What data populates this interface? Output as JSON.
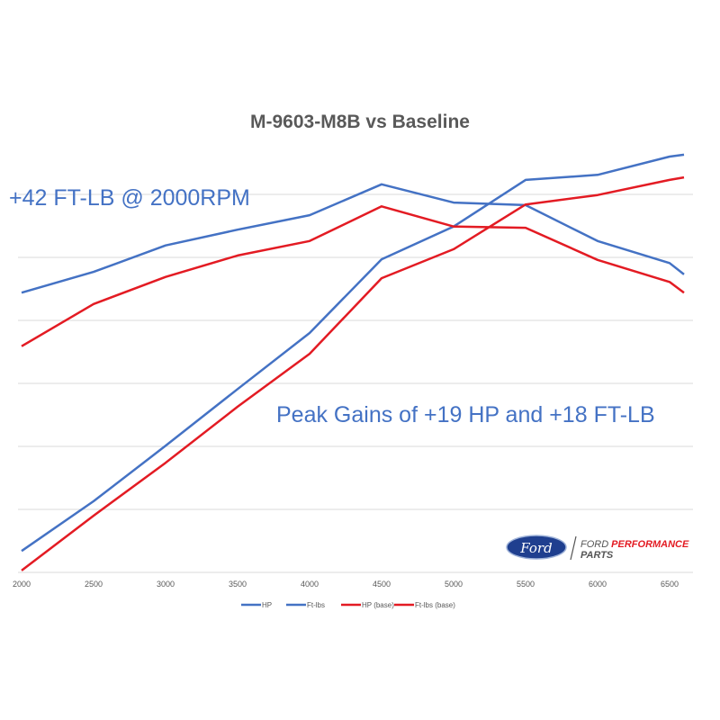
{
  "chart_data": {
    "type": "line",
    "title": "M-9603-M8B vs Baseline",
    "xlabel": "",
    "ylabel": "",
    "x": [
      2000,
      2500,
      3000,
      3500,
      4000,
      4500,
      5000,
      5500,
      6000,
      6500,
      6600
    ],
    "x_ticks": [
      "2000",
      "2500",
      "3000",
      "3500",
      "4000",
      "4500",
      "5000",
      "5500",
      "6000",
      "6500"
    ],
    "xlim": [
      2000,
      6650
    ],
    "ylim": [
      0,
      7
    ],
    "y_tick_labels_shown": false,
    "grid": "horizontal",
    "legend_position": "bottom",
    "series": [
      {
        "name": "HP",
        "color": "#4472c4",
        "values": [
          0.34,
          1.13,
          2.01,
          2.91,
          3.8,
          4.97,
          5.49,
          6.23,
          6.31,
          6.6,
          6.63
        ]
      },
      {
        "name": "Ft-lbs",
        "color": "#4472c4",
        "values": [
          4.44,
          4.77,
          5.19,
          5.44,
          5.67,
          6.16,
          5.87,
          5.83,
          5.26,
          4.91,
          4.73
        ]
      },
      {
        "name": "HP (base)",
        "color": "#e31b23",
        "values": [
          0.03,
          0.9,
          1.74,
          2.63,
          3.47,
          4.67,
          5.13,
          5.84,
          5.99,
          6.23,
          6.27
        ]
      },
      {
        "name": "Ft-lbs (base)",
        "color": "#e31b23",
        "values": [
          3.59,
          4.26,
          4.69,
          5.03,
          5.26,
          5.81,
          5.49,
          5.47,
          4.96,
          4.61,
          4.44
        ]
      }
    ],
    "annotations": [
      "+42 FT-LB @ 2000RPM",
      "Peak Gains of +19 HP and +18 FT-LB"
    ]
  },
  "logo": {
    "brand": "Ford",
    "line1a": "FORD",
    "line1b": "PERFORMANCE",
    "line2": "PARTS"
  }
}
